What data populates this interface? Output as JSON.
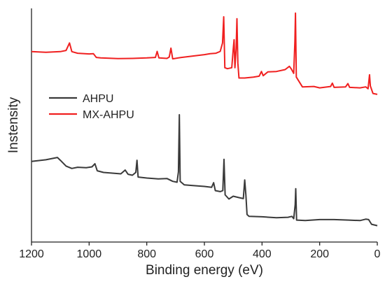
{
  "chart_data": {
    "type": "line",
    "xlabel": "Binding energy (eV)",
    "ylabel": "Instensity",
    "xlim": [
      1200,
      0
    ],
    "ylim": [
      0,
      100
    ],
    "xaxis_reversed": true,
    "y_tick_labels": false,
    "x_ticks": [
      1200,
      1000,
      800,
      600,
      400,
      200,
      0
    ],
    "legend_position": "center-left",
    "grid": false,
    "series": [
      {
        "name": "AHPU",
        "color": "#3a3a3a",
        "points": [
          [
            1200,
            34.5
          ],
          [
            1150,
            35.2
          ],
          [
            1110,
            36.2
          ],
          [
            1100,
            35.0
          ],
          [
            1080,
            32.5
          ],
          [
            1060,
            31.5
          ],
          [
            1040,
            32.0
          ],
          [
            1010,
            31.8
          ],
          [
            990,
            32.2
          ],
          [
            980,
            33.5
          ],
          [
            972,
            30.5
          ],
          [
            950,
            29.8
          ],
          [
            920,
            29.5
          ],
          [
            890,
            29.2
          ],
          [
            875,
            30.8
          ],
          [
            865,
            29.0
          ],
          [
            850,
            28.6
          ],
          [
            838,
            29.8
          ],
          [
            834,
            35.0
          ],
          [
            830,
            27.8
          ],
          [
            800,
            27.4
          ],
          [
            760,
            27.0
          ],
          [
            730,
            27.2
          ],
          [
            710,
            26.0
          ],
          [
            695,
            25.6
          ],
          [
            690,
            30.0
          ],
          [
            687,
            54.5
          ],
          [
            684,
            26.0
          ],
          [
            670,
            24.5
          ],
          [
            640,
            24.2
          ],
          [
            600,
            23.8
          ],
          [
            575,
            23.4
          ],
          [
            568,
            25.4
          ],
          [
            562,
            22.0
          ],
          [
            545,
            21.6
          ],
          [
            536,
            22.0
          ],
          [
            532,
            35.4
          ],
          [
            528,
            20.2
          ],
          [
            515,
            18.4
          ],
          [
            500,
            19.6
          ],
          [
            480,
            19.0
          ],
          [
            465,
            18.6
          ],
          [
            460,
            26.6
          ],
          [
            456,
            20.0
          ],
          [
            452,
            11.8
          ],
          [
            445,
            11.0
          ],
          [
            400,
            10.8
          ],
          [
            350,
            10.4
          ],
          [
            310,
            10.6
          ],
          [
            296,
            11.0
          ],
          [
            290,
            10.0
          ],
          [
            285,
            16.0
          ],
          [
            283,
            22.8
          ],
          [
            280,
            9.4
          ],
          [
            250,
            9.2
          ],
          [
            200,
            9.6
          ],
          [
            150,
            9.6
          ],
          [
            100,
            9.4
          ],
          [
            60,
            9.2
          ],
          [
            40,
            9.8
          ],
          [
            30,
            9.6
          ],
          [
            20,
            7.6
          ],
          [
            0,
            7.0
          ]
        ]
      },
      {
        "name": "MX-AHPU",
        "color": "#f02020",
        "points": [
          [
            1200,
            81.5
          ],
          [
            1150,
            81.2
          ],
          [
            1100,
            81.5
          ],
          [
            1080,
            82.0
          ],
          [
            1068,
            85.2
          ],
          [
            1060,
            81.5
          ],
          [
            1040,
            80.8
          ],
          [
            1000,
            80.5
          ],
          [
            985,
            80.6
          ],
          [
            975,
            79.0
          ],
          [
            960,
            78.8
          ],
          [
            900,
            78.5
          ],
          [
            850,
            78.6
          ],
          [
            800,
            78.8
          ],
          [
            770,
            79.0
          ],
          [
            764,
            81.6
          ],
          [
            758,
            78.8
          ],
          [
            730,
            78.6
          ],
          [
            722,
            79.2
          ],
          [
            716,
            83.0
          ],
          [
            710,
            78.4
          ],
          [
            680,
            79.0
          ],
          [
            640,
            79.6
          ],
          [
            600,
            80.2
          ],
          [
            580,
            80.6
          ],
          [
            560,
            80.8
          ],
          [
            545,
            81.6
          ],
          [
            537,
            85.2
          ],
          [
            533,
            96.4
          ],
          [
            529,
            74.6
          ],
          [
            520,
            74.2
          ],
          [
            505,
            74.6
          ],
          [
            500,
            82.6
          ],
          [
            497,
            86.6
          ],
          [
            494,
            74.6
          ],
          [
            490,
            82.6
          ],
          [
            487,
            95.6
          ],
          [
            484,
            76.6
          ],
          [
            480,
            70.2
          ],
          [
            460,
            70.2
          ],
          [
            430,
            70.6
          ],
          [
            410,
            71.0
          ],
          [
            402,
            73.0
          ],
          [
            396,
            71.2
          ],
          [
            380,
            72.8
          ],
          [
            350,
            73.0
          ],
          [
            320,
            73.8
          ],
          [
            305,
            75.2
          ],
          [
            298,
            74.0
          ],
          [
            290,
            72.2
          ],
          [
            286,
            86.0
          ],
          [
            284,
            98.0
          ],
          [
            281,
            70.6
          ],
          [
            260,
            66.4
          ],
          [
            220,
            66.6
          ],
          [
            200,
            66.0
          ],
          [
            162,
            66.6
          ],
          [
            156,
            68.0
          ],
          [
            150,
            66.2
          ],
          [
            110,
            66.4
          ],
          [
            102,
            67.8
          ],
          [
            96,
            66.2
          ],
          [
            60,
            66.0
          ],
          [
            40,
            66.4
          ],
          [
            32,
            65.6
          ],
          [
            27,
            71.6
          ],
          [
            24,
            66.8
          ],
          [
            15,
            63.6
          ],
          [
            0,
            63.2
          ]
        ]
      }
    ]
  }
}
